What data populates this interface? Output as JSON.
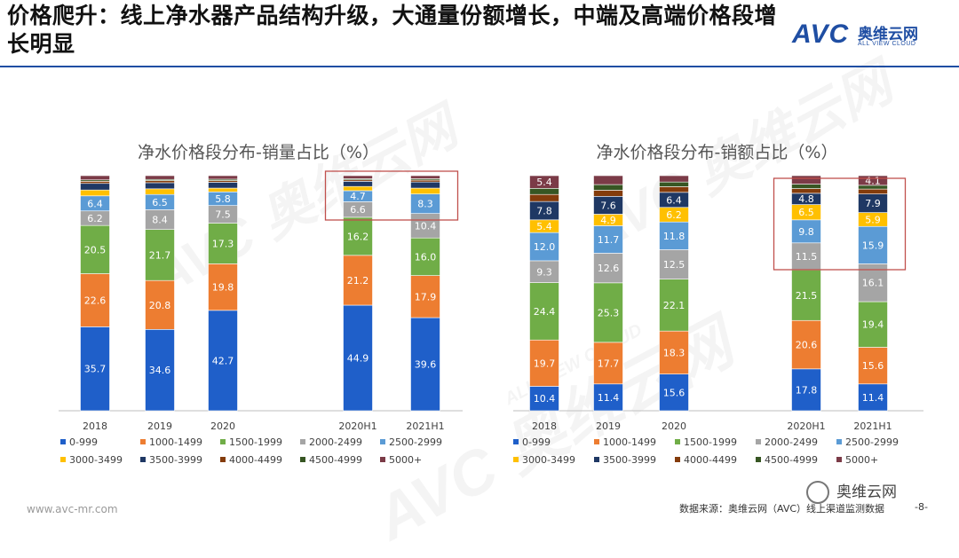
{
  "header": {
    "title": "价格爬升：线上净水器产品结构升级，大通量份额增长，中端及高端价格段增长明显",
    "logo_main": "AVC",
    "logo_cn": "奥维云网",
    "logo_en": "ALL VIEW CLOUD"
  },
  "footer": {
    "website": "www.avc-mr.com",
    "source": "数据来源：奥维云网（AVC）线上渠道监测数据",
    "page": "-8-",
    "wechat": "奥维云网"
  },
  "watermark": {
    "main": "AVC 奥维云网",
    "sub": "ALL VIEW CLOUD"
  },
  "colors": {
    "0-999": "#1f5fc9",
    "1000-1499": "#ed7d31",
    "1500-1999": "#70ad47",
    "2000-2499": "#a5a5a5",
    "2500-2999": "#5b9bd5",
    "3000-3499": "#ffc000",
    "3500-3999": "#1f3864",
    "4000-4499": "#843c0c",
    "4500-4999": "#375623",
    "5000+": "#7b3b47",
    "highlight": "#c0504d"
  },
  "chart_data": [
    {
      "type": "bar",
      "stacked": true,
      "title": "净水价格段分布-销量占比（%）",
      "categories": [
        "2018",
        "2019",
        "2020",
        "2020H1",
        "2021H1"
      ],
      "series": [
        {
          "name": "0-999",
          "values": [
            35.7,
            34.6,
            42.7,
            44.9,
            39.6
          ]
        },
        {
          "name": "1000-1499",
          "values": [
            22.6,
            20.8,
            19.8,
            21.2,
            17.9
          ]
        },
        {
          "name": "1500-1999",
          "values": [
            20.5,
            21.7,
            17.3,
            16.2,
            16.0
          ]
        },
        {
          "name": "2000-2499",
          "values": [
            6.2,
            8.4,
            7.5,
            6.6,
            10.4
          ]
        },
        {
          "name": "2500-2999",
          "values": [
            6.4,
            6.5,
            5.8,
            4.7,
            8.3
          ]
        },
        {
          "name": "3000-3499",
          "values": [
            2.5,
            2.4,
            1.6,
            1.8,
            2.5
          ]
        },
        {
          "name": "3500-3999",
          "values": [
            2.8,
            2.6,
            2.5,
            2.2,
            2.6
          ]
        },
        {
          "name": "4000-4499",
          "values": [
            0.9,
            0.9,
            0.7,
            0.6,
            0.8
          ]
        },
        {
          "name": "4500-4999",
          "values": [
            0.6,
            0.5,
            0.6,
            0.5,
            0.6
          ]
        },
        {
          "name": "5000+",
          "values": [
            1.8,
            1.6,
            1.5,
            1.3,
            1.3
          ]
        }
      ],
      "ylim": [
        0,
        100
      ],
      "highlight": [
        "2020H1",
        "2021H1"
      ],
      "legend": "bottom"
    },
    {
      "type": "bar",
      "stacked": true,
      "title": "净水价格段分布-销额占比（%）",
      "categories": [
        "2018",
        "2019",
        "2020",
        "2020H1",
        "2021H1"
      ],
      "series": [
        {
          "name": "0-999",
          "values": [
            10.4,
            11.4,
            15.6,
            17.8,
            11.4
          ]
        },
        {
          "name": "1000-1499",
          "values": [
            19.7,
            17.7,
            18.3,
            20.6,
            15.6
          ]
        },
        {
          "name": "1500-1999",
          "values": [
            24.4,
            25.3,
            22.1,
            21.5,
            19.4
          ]
        },
        {
          "name": "2000-2499",
          "values": [
            9.3,
            12.6,
            12.5,
            11.5,
            16.1
          ]
        },
        {
          "name": "2500-2999",
          "values": [
            12.0,
            11.7,
            11.8,
            9.8,
            15.9
          ]
        },
        {
          "name": "3000-3499",
          "values": [
            5.4,
            4.9,
            6.2,
            6.5,
            5.9
          ]
        },
        {
          "name": "3500-3999",
          "values": [
            7.8,
            7.6,
            6.4,
            4.8,
            7.9
          ]
        },
        {
          "name": "4000-4499",
          "values": [
            3.0,
            2.6,
            2.4,
            2.0,
            2.1
          ]
        },
        {
          "name": "4500-4999",
          "values": [
            2.6,
            2.4,
            2.0,
            1.9,
            1.6
          ]
        },
        {
          "name": "5000+",
          "values": [
            5.4,
            3.8,
            2.7,
            3.6,
            4.1
          ]
        }
      ],
      "ylim": [
        0,
        100
      ],
      "highlight": [
        "2020H1",
        "2021H1"
      ],
      "legend": "bottom"
    }
  ]
}
